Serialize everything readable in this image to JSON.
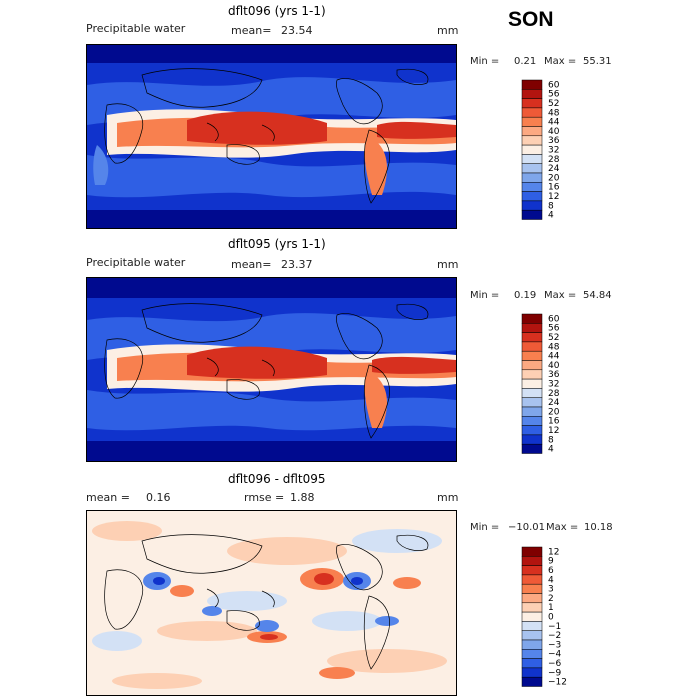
{
  "season": "SON",
  "panels": [
    {
      "title": "dflt096 (yrs 1-1)",
      "field": "Precipitable water",
      "mean_label": "mean=",
      "mean": "23.54",
      "units": "mm",
      "min_label": "Min =",
      "min": "0.21",
      "max_label": "Max =",
      "max": "55.31",
      "colorbar_levels": [
        "60",
        "56",
        "52",
        "48",
        "44",
        "40",
        "36",
        "32",
        "28",
        "24",
        "20",
        "16",
        "12",
        "8",
        "4"
      ]
    },
    {
      "title": "dflt095 (yrs 1-1)",
      "field": "Precipitable water",
      "mean_label": "mean=",
      "mean": "23.37",
      "units": "mm",
      "min_label": "Min =",
      "min": "0.19",
      "max_label": "Max =",
      "max": "54.84",
      "colorbar_levels": [
        "60",
        "56",
        "52",
        "48",
        "44",
        "40",
        "36",
        "32",
        "28",
        "24",
        "20",
        "16",
        "12",
        "8",
        "4"
      ]
    },
    {
      "title": "dflt096 - dflt095",
      "mean_label": "mean =",
      "mean": "0.16",
      "rmse_label": "rmse =",
      "rmse": "1.88",
      "units": "mm",
      "min_label": "Min =",
      "min": "−10.01",
      "max_label": "Max =",
      "max": "10.18",
      "colorbar_levels": [
        "12",
        "9",
        "6",
        "4",
        "3",
        "2",
        "1",
        "0",
        "−1",
        "−2",
        "−3",
        "−4",
        "−6",
        "−9",
        "−12"
      ]
    }
  ],
  "colors": {
    "abs_scale": [
      "#7f0000",
      "#b2140f",
      "#d7301f",
      "#ef5a37",
      "#f8804f",
      "#fca982",
      "#fdd0b4",
      "#fcefe4",
      "#d3e1f5",
      "#a8c3ef",
      "#7fa6ea",
      "#5585ea",
      "#2f5fe4",
      "#1033cc",
      "#000a8f"
    ],
    "diff_scale": [
      "#7f0000",
      "#b2140f",
      "#d7301f",
      "#ef5a37",
      "#f8804f",
      "#fca982",
      "#fdd0b4",
      "#fcefe4",
      "#d3e1f5",
      "#a8c3ef",
      "#7fa6ea",
      "#5585ea",
      "#2f5fe4",
      "#1033cc",
      "#000a8f"
    ]
  },
  "chart_data": [
    {
      "type": "heatmap",
      "title": "dflt096 (yrs 1-1)",
      "subtitle": "Precipitable water",
      "units": "mm",
      "mean": 23.54,
      "min": 0.21,
      "max": 55.31,
      "contour_levels": [
        4,
        8,
        12,
        16,
        20,
        24,
        28,
        32,
        36,
        40,
        44,
        48,
        52,
        56,
        60
      ]
    },
    {
      "type": "heatmap",
      "title": "dflt095 (yrs 1-1)",
      "subtitle": "Precipitable water",
      "units": "mm",
      "mean": 23.37,
      "min": 0.19,
      "max": 54.84,
      "contour_levels": [
        4,
        8,
        12,
        16,
        20,
        24,
        28,
        32,
        36,
        40,
        44,
        48,
        52,
        56,
        60
      ]
    },
    {
      "type": "heatmap",
      "title": "dflt096 - dflt095",
      "units": "mm",
      "mean": 0.16,
      "rmse": 1.88,
      "min": -10.01,
      "max": 10.18,
      "contour_levels": [
        -12,
        -9,
        -6,
        -4,
        -3,
        -2,
        -1,
        0,
        1,
        2,
        3,
        4,
        6,
        9,
        12
      ]
    }
  ]
}
